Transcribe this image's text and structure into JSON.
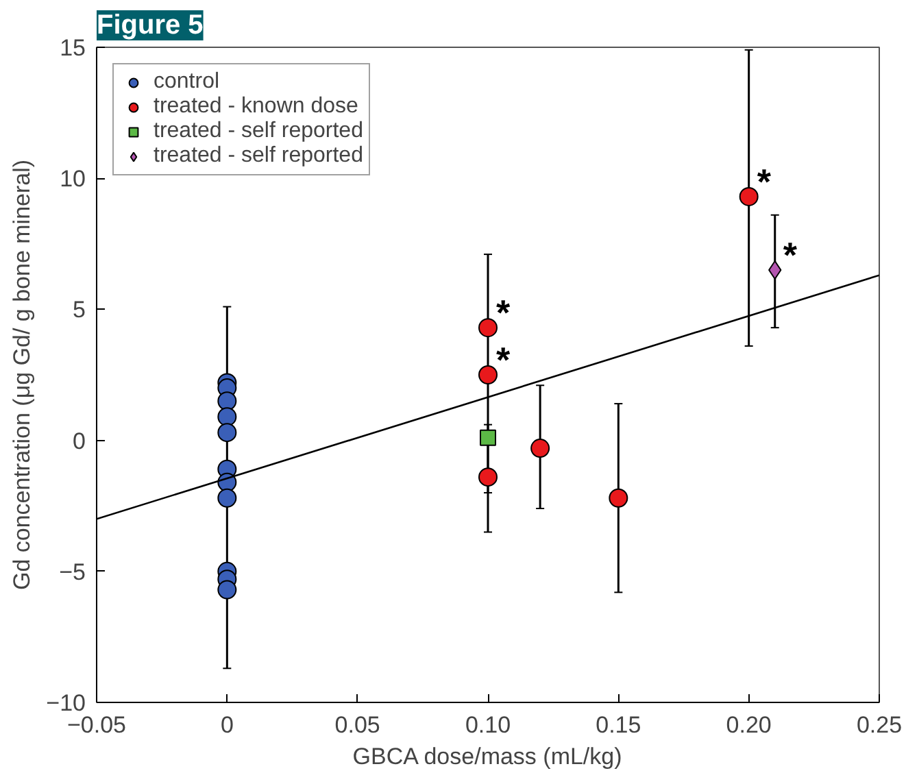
{
  "chart_data": {
    "type": "scatter",
    "title": "Figure 5",
    "xlabel": "GBCA dose/mass (mL/kg)",
    "ylabel": "Gd concentration (μg Gd/ g bone mineral)",
    "xlim": [
      -0.05,
      0.25
    ],
    "ylim": [
      -10,
      15
    ],
    "xticks": [
      -0.05,
      0,
      0.05,
      {
        "value": 0.1,
        "label": "0.10"
      },
      0.15,
      {
        "value": 0.2,
        "label": "0.20"
      },
      0.25
    ],
    "yticks": [
      -10,
      -5,
      0,
      5,
      10,
      15
    ],
    "grid": false,
    "legend": "top left",
    "series": [
      {
        "name": "control",
        "color": "#3a5fb8",
        "marker": "circle",
        "x": [
          0,
          0,
          0,
          0,
          0,
          0,
          0,
          0,
          0,
          0,
          0
        ],
        "values": [
          2.2,
          2.0,
          1.5,
          0.9,
          0.3,
          -1.1,
          -1.6,
          -2.2,
          -5.0,
          -5.3,
          -5.7
        ],
        "errors": [
          null,
          null,
          null,
          null,
          null,
          null,
          [
            -8.7,
            5.1
          ],
          null,
          null,
          null,
          null
        ]
      },
      {
        "name": "treated - known dose",
        "color": "#e8191c",
        "marker": "circle",
        "x": [
          0.1,
          0.1,
          0.1,
          0.12,
          0.15,
          0.2
        ],
        "values": [
          4.3,
          2.5,
          -1.4,
          -0.3,
          -2.2,
          9.3
        ],
        "errors": [
          null,
          [
            -3.5,
            7.1
          ],
          null,
          [
            -2.6,
            2.1
          ],
          [
            -5.8,
            1.4
          ],
          [
            3.6,
            14.9
          ]
        ]
      },
      {
        "name": "treated - self reported",
        "color": "#5cb946",
        "marker": "square",
        "x": [
          0.1
        ],
        "values": [
          0.1
        ],
        "errors": [
          [
            -2.0,
            0.6
          ]
        ]
      },
      {
        "name": "treated - self reported",
        "color": "#b455b0",
        "marker": "diamond",
        "x": [
          0.21
        ],
        "values": [
          6.5
        ],
        "errors": [
          [
            4.3,
            8.6
          ]
        ]
      },
      {
        "type": "line",
        "color": "#000000",
        "x": [
          -0.05,
          0.25
        ],
        "values": [
          -3.0,
          6.3
        ]
      }
    ],
    "annotations": [
      {
        "text": "*",
        "x": 0.1,
        "y": 4.3
      },
      {
        "text": "*",
        "x": 0.1,
        "y": 2.5
      },
      {
        "text": "*",
        "x": 0.2,
        "y": 9.3
      },
      {
        "text": "*",
        "x": 0.21,
        "y": 6.5
      }
    ]
  }
}
